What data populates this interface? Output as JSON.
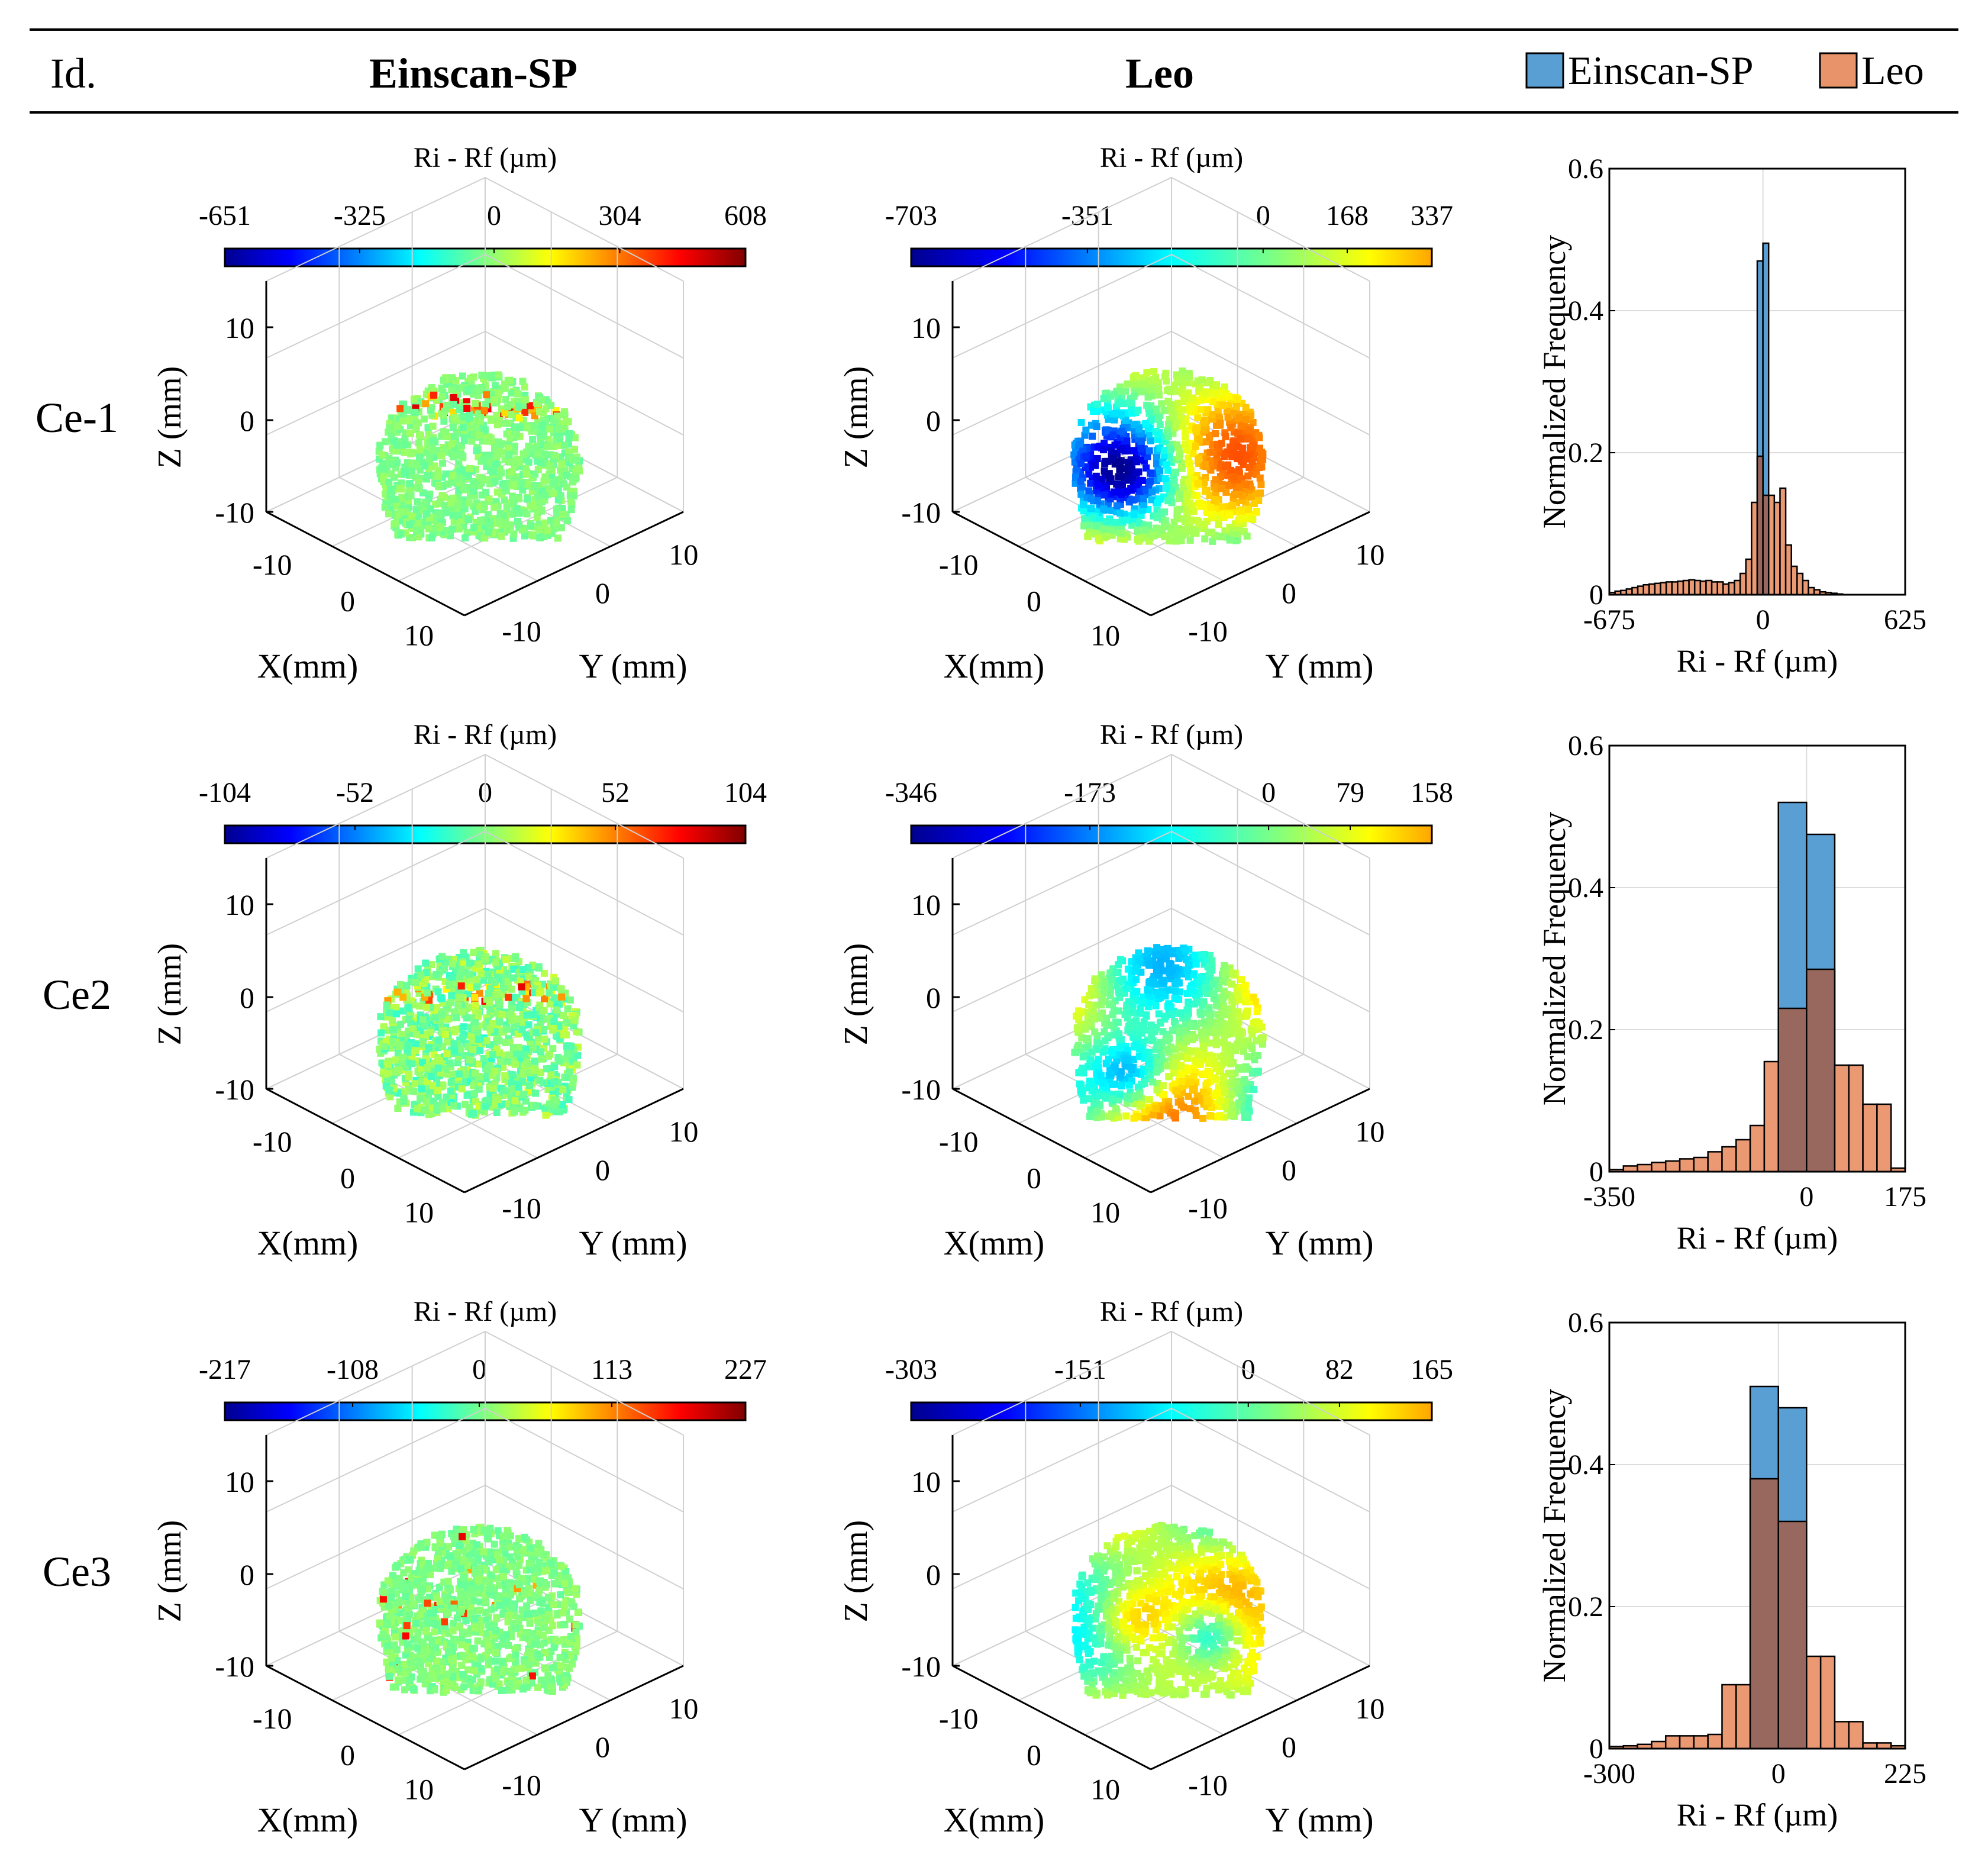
{
  "header": {
    "id_label": "Id.",
    "col1_title": "Einscan-SP",
    "col2_title": "Leo",
    "legend": [
      {
        "name": "Einscan-SP",
        "color": "#5a9fd4"
      },
      {
        "name": "Leo",
        "color": "#e9936a"
      }
    ]
  },
  "colors": {
    "einscan": "#5a9fd4",
    "leo": "#e9936a",
    "overlap": "#9c6557",
    "point_base": "#8ef07a"
  },
  "rows": [
    {
      "id": "Ce-1",
      "einscan_colorbar": {
        "label": "Ri - Rf (µm)",
        "ticks": [
          "-651",
          "-325",
          "0",
          "304",
          "608"
        ],
        "range": [
          -651,
          608
        ],
        "colormap": "jet"
      },
      "leo_colorbar": {
        "label": "Ri - Rf (µm)",
        "ticks": [
          "-703",
          "-351",
          "0",
          "168",
          "337"
        ],
        "range": [
          -703,
          337
        ],
        "colormap": "jet-truncated"
      },
      "scatter3d": {
        "zlabel": "Z (mm)",
        "xlabel": "X(mm)",
        "ylabel": "Y (mm)",
        "zticks": [
          "10",
          "0",
          "-10"
        ],
        "xticks": [
          "-10",
          "0",
          "10"
        ],
        "yticks": [
          "-10",
          "0",
          "10"
        ]
      }
    },
    {
      "id": "Ce2",
      "einscan_colorbar": {
        "label": "Ri - Rf (µm)",
        "ticks": [
          "-104",
          "-52",
          "0",
          "52",
          "104"
        ],
        "range": [
          -104,
          104
        ],
        "colormap": "jet"
      },
      "leo_colorbar": {
        "label": "Ri - Rf (µm)",
        "ticks": [
          "-346",
          "-173",
          "0",
          "79",
          "158"
        ],
        "range": [
          -346,
          158
        ],
        "colormap": "jet-truncated"
      },
      "scatter3d": {
        "zlabel": "Z (mm)",
        "xlabel": "X(mm)",
        "ylabel": "Y (mm)",
        "zticks": [
          "10",
          "0",
          "-10"
        ],
        "xticks": [
          "-10",
          "0",
          "10"
        ],
        "yticks": [
          "-10",
          "0",
          "10"
        ]
      }
    },
    {
      "id": "Ce3",
      "einscan_colorbar": {
        "label": "Ri - Rf (µm)",
        "ticks": [
          "-217",
          "-108",
          "0",
          "113",
          "227"
        ],
        "range": [
          -217,
          227
        ],
        "colormap": "jet"
      },
      "leo_colorbar": {
        "label": "Ri - Rf (µm)",
        "ticks": [
          "-303",
          "-151",
          "0",
          "82",
          "165"
        ],
        "range": [
          -303,
          165
        ],
        "colormap": "jet-truncated"
      },
      "scatter3d": {
        "zlabel": "Z (mm)",
        "xlabel": "X(mm)",
        "ylabel": "Y (mm)",
        "zticks": [
          "10",
          "0",
          "-10"
        ],
        "xticks": [
          "-10",
          "0",
          "10"
        ],
        "yticks": [
          "-10",
          "0",
          "10"
        ]
      }
    }
  ],
  "chart_data": [
    {
      "type": "bar",
      "subtype": "histogram",
      "row": "Ce-1",
      "xlabel": "Ri - Rf (µm)",
      "ylabel": "Normalized Frequency",
      "xlim": [
        -675,
        625
      ],
      "ylim": [
        0,
        0.6
      ],
      "xtick_labels": [
        "-675",
        "0",
        "625"
      ],
      "yticks": [
        0,
        0.2,
        0.4,
        0.6
      ],
      "grid": true,
      "series": [
        {
          "name": "Einscan-SP",
          "bins": [
            [
              -25,
              0,
              0.47
            ],
            [
              0,
              25,
              0.495
            ]
          ]
        },
        {
          "name": "Leo",
          "bins": [
            [
              -675,
              -650,
              0.003
            ],
            [
              -650,
              -625,
              0.005
            ],
            [
              -625,
              -600,
              0.006
            ],
            [
              -600,
              -575,
              0.008
            ],
            [
              -575,
              -550,
              0.01
            ],
            [
              -550,
              -525,
              0.012
            ],
            [
              -525,
              -500,
              0.014
            ],
            [
              -500,
              -475,
              0.015
            ],
            [
              -475,
              -450,
              0.016
            ],
            [
              -450,
              -425,
              0.017
            ],
            [
              -425,
              -400,
              0.018
            ],
            [
              -400,
              -375,
              0.018
            ],
            [
              -375,
              -350,
              0.019
            ],
            [
              -350,
              -325,
              0.02
            ],
            [
              -325,
              -300,
              0.021
            ],
            [
              -300,
              -275,
              0.02
            ],
            [
              -275,
              -250,
              0.019
            ],
            [
              -250,
              -225,
              0.02
            ],
            [
              -225,
              -200,
              0.018
            ],
            [
              -200,
              -175,
              0.018
            ],
            [
              -175,
              -150,
              0.015
            ],
            [
              -150,
              -125,
              0.017
            ],
            [
              -125,
              -100,
              0.02
            ],
            [
              -100,
              -75,
              0.03
            ],
            [
              -75,
              -50,
              0.05
            ],
            [
              -50,
              -25,
              0.13
            ],
            [
              -25,
              0,
              0.195
            ],
            [
              0,
              25,
              0.14
            ],
            [
              25,
              50,
              0.14
            ],
            [
              50,
              75,
              0.13
            ],
            [
              75,
              100,
              0.15
            ],
            [
              100,
              125,
              0.07
            ],
            [
              125,
              150,
              0.04
            ],
            [
              150,
              175,
              0.03
            ],
            [
              175,
              200,
              0.02
            ],
            [
              200,
              225,
              0.01
            ],
            [
              225,
              250,
              0.007
            ],
            [
              250,
              275,
              0.004
            ],
            [
              275,
              300,
              0.003
            ],
            [
              300,
              325,
              0.002
            ],
            [
              325,
              350,
              0.001
            ]
          ]
        }
      ]
    },
    {
      "type": "bar",
      "subtype": "histogram",
      "row": "Ce2",
      "xlabel": "Ri - Rf (µm)",
      "ylabel": "Normalized Frequency",
      "xlim": [
        -350,
        175
      ],
      "ylim": [
        0,
        0.6
      ],
      "xtick_labels": [
        "-350",
        "0",
        "175"
      ],
      "yticks": [
        0,
        0.2,
        0.4,
        0.6
      ],
      "grid": true,
      "series": [
        {
          "name": "Einscan-SP",
          "bins": [
            [
              -50,
              0,
              0.52
            ],
            [
              0,
              50,
              0.475
            ]
          ]
        },
        {
          "name": "Leo",
          "bins": [
            [
              -350,
              -325,
              0.003
            ],
            [
              -325,
              -300,
              0.008
            ],
            [
              -300,
              -275,
              0.01
            ],
            [
              -275,
              -250,
              0.013
            ],
            [
              -250,
              -225,
              0.015
            ],
            [
              -225,
              -200,
              0.018
            ],
            [
              -200,
              -175,
              0.02
            ],
            [
              -175,
              -150,
              0.028
            ],
            [
              -150,
              -125,
              0.035
            ],
            [
              -125,
              -100,
              0.045
            ],
            [
              -100,
              -75,
              0.065
            ],
            [
              -75,
              -50,
              0.155
            ],
            [
              -50,
              0,
              0.23
            ],
            [
              0,
              50,
              0.285
            ],
            [
              50,
              75,
              0.15
            ],
            [
              75,
              100,
              0.15
            ],
            [
              100,
              125,
              0.095
            ],
            [
              125,
              150,
              0.095
            ],
            [
              150,
              175,
              0.005
            ]
          ]
        }
      ]
    },
    {
      "type": "bar",
      "subtype": "histogram",
      "row": "Ce3",
      "xlabel": "Ri - Rf (µm)",
      "ylabel": "Normalized Frequency",
      "xlim": [
        -300,
        225
      ],
      "ylim": [
        0,
        0.6
      ],
      "xtick_labels": [
        "-300",
        "0",
        "225"
      ],
      "yticks": [
        0,
        0.2,
        0.4,
        0.6
      ],
      "grid": true,
      "series": [
        {
          "name": "Einscan-SP",
          "bins": [
            [
              -50,
              0,
              0.51
            ],
            [
              0,
              50,
              0.48
            ]
          ]
        },
        {
          "name": "Leo",
          "bins": [
            [
              -300,
              -275,
              0.003
            ],
            [
              -275,
              -250,
              0.004
            ],
            [
              -250,
              -225,
              0.006
            ],
            [
              -225,
              -200,
              0.01
            ],
            [
              -200,
              -175,
              0.018
            ],
            [
              -175,
              -150,
              0.018
            ],
            [
              -150,
              -125,
              0.018
            ],
            [
              -125,
              -100,
              0.02
            ],
            [
              -100,
              -75,
              0.09
            ],
            [
              -75,
              -50,
              0.09
            ],
            [
              -50,
              0,
              0.38
            ],
            [
              0,
              50,
              0.32
            ],
            [
              50,
              75,
              0.13
            ],
            [
              75,
              100,
              0.13
            ],
            [
              100,
              125,
              0.038
            ],
            [
              125,
              150,
              0.038
            ],
            [
              150,
              175,
              0.008
            ],
            [
              175,
              200,
              0.008
            ],
            [
              200,
              225,
              0.004
            ]
          ]
        }
      ]
    }
  ]
}
